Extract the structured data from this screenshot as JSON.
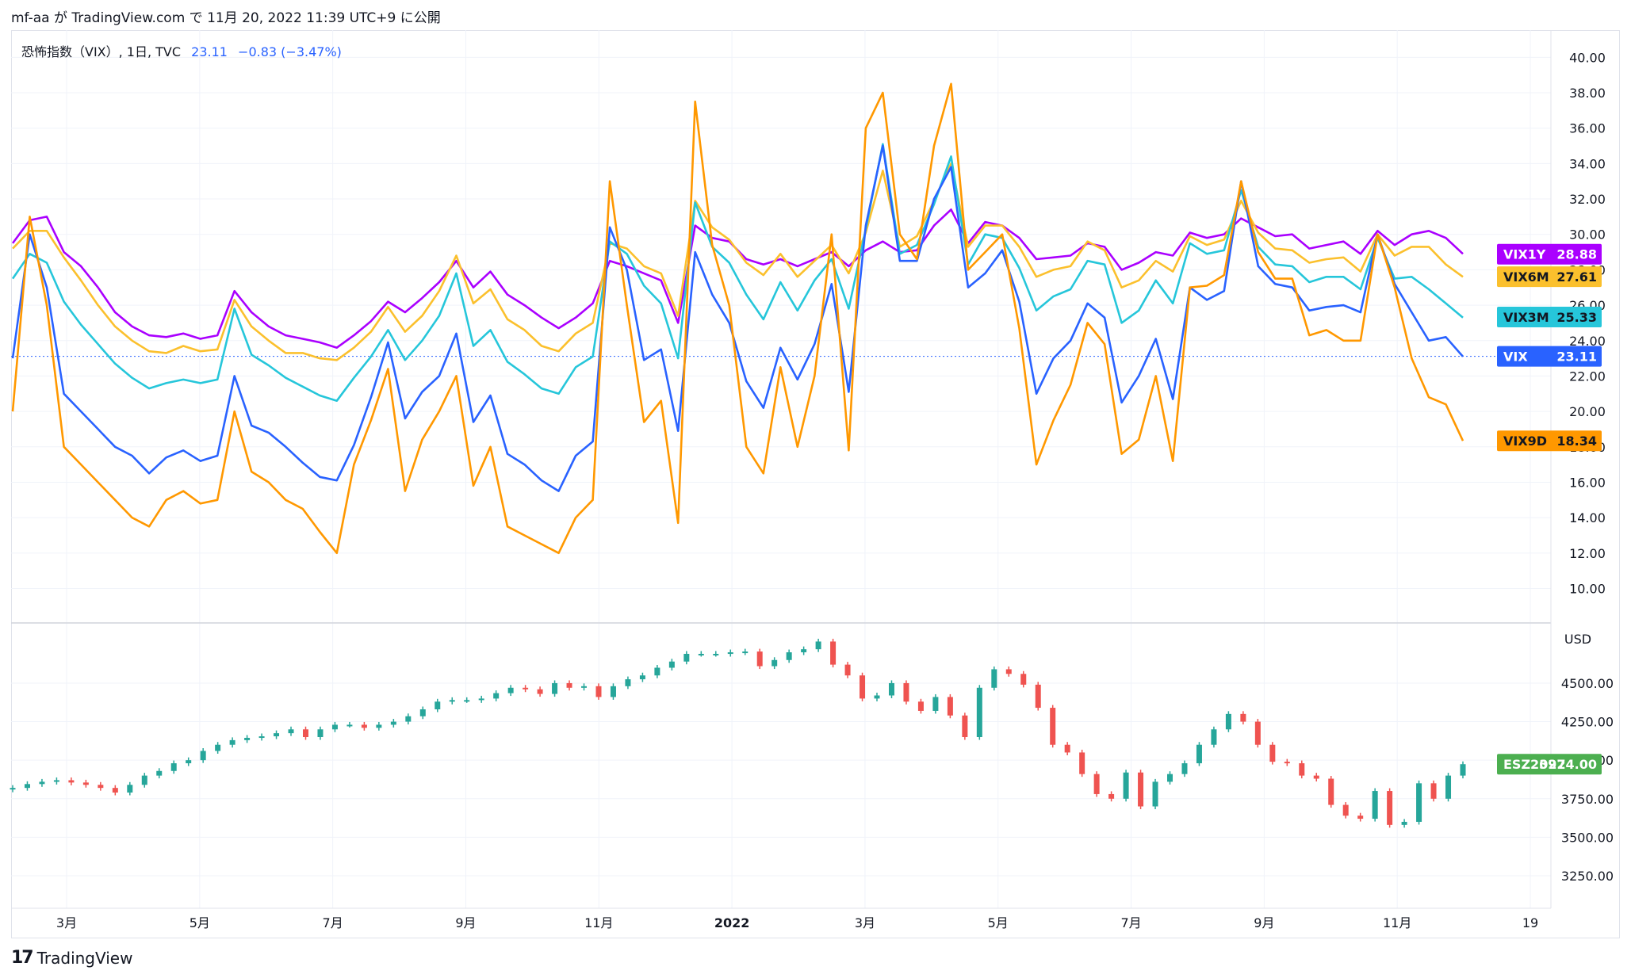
{
  "header": {
    "text": "mf-aa が TradingView.com で 11月 20, 2022 11:39 UTC+9 に公開"
  },
  "legend": {
    "title": "恐怖指数（VIX）, 1日, TVC",
    "value": "23.11",
    "change": "−0.83 (−3.47%)"
  },
  "footer": {
    "brand": "TradingView",
    "logo_icon": "tradingview-logo-icon"
  },
  "colors": {
    "VIX": "#2962ff",
    "VIX9D": "#ff9800",
    "VIX3M": "#26c6da",
    "VIX6M": "#fbc02d",
    "VIX1Y": "#aa00ff",
    "up": "#26a69a",
    "down": "#ef5350",
    "ES": "#4caf50"
  },
  "chart_data": [
    {
      "type": "line",
      "title": "",
      "x_tick_labels": [
        "3月",
        "5月",
        "7月",
        "9月",
        "11月",
        "2022",
        "3月",
        "5月",
        "7月",
        "9月",
        "11月",
        "19"
      ],
      "x_range": [
        "2021-01-25",
        "2022-11-20"
      ],
      "ylim": [
        8.5,
        41
      ],
      "y_ticks": [
        "10.00",
        "12.00",
        "14.00",
        "16.00",
        "18.00",
        "20.00",
        "22.00",
        "24.00",
        "26.00",
        "28.00",
        "30.00",
        "32.00",
        "34.00",
        "36.00",
        "38.00",
        "40.00"
      ],
      "grid": true,
      "series": [
        {
          "name": "VIX1Y",
          "last": "28.88",
          "values": [
            29.5,
            30.8,
            31.0,
            29.0,
            28.2,
            27.0,
            25.6,
            24.8,
            24.3,
            24.2,
            24.4,
            24.1,
            24.3,
            26.8,
            25.6,
            24.8,
            24.3,
            24.1,
            23.9,
            23.6,
            24.3,
            25.1,
            26.2,
            25.6,
            26.4,
            27.3,
            28.5,
            27.0,
            27.9,
            26.6,
            26.0,
            25.3,
            24.7,
            25.3,
            26.1,
            28.5,
            28.2,
            27.8,
            27.4,
            25.0,
            30.5,
            29.8,
            29.6,
            28.6,
            28.3,
            28.6,
            28.2,
            28.6,
            29.0,
            28.2,
            29.1,
            29.6,
            29.0,
            29.1,
            30.5,
            31.4,
            29.5,
            30.7,
            30.5,
            29.8,
            28.6,
            28.7,
            28.8,
            29.5,
            29.3,
            28.0,
            28.4,
            29.0,
            28.8,
            30.1,
            29.8,
            30.0,
            30.9,
            30.4,
            29.9,
            30.0,
            29.2,
            29.4,
            29.6,
            28.9,
            30.2,
            29.4,
            30.0,
            30.2,
            29.8,
            28.9
          ]
        },
        {
          "name": "VIX6M",
          "last": "27.61",
          "values": [
            29.2,
            30.2,
            30.2,
            28.7,
            27.4,
            26.0,
            24.8,
            24.0,
            23.4,
            23.3,
            23.7,
            23.4,
            23.5,
            26.3,
            24.8,
            24.0,
            23.3,
            23.3,
            23.0,
            22.9,
            23.6,
            24.5,
            25.9,
            24.5,
            25.4,
            26.8,
            28.8,
            26.1,
            26.9,
            25.2,
            24.6,
            23.7,
            23.4,
            24.4,
            25.0,
            29.5,
            29.2,
            28.2,
            27.8,
            25.4,
            31.9,
            30.4,
            29.7,
            28.4,
            27.7,
            28.9,
            27.6,
            28.5,
            29.4,
            27.8,
            30.1,
            33.6,
            29.3,
            29.9,
            31.9,
            34.0,
            29.3,
            30.5,
            30.5,
            29.3,
            27.6,
            28.0,
            28.2,
            29.6,
            29.1,
            27.0,
            27.4,
            28.5,
            27.9,
            29.9,
            29.4,
            29.7,
            31.9,
            30.1,
            29.2,
            29.1,
            28.4,
            28.6,
            28.7,
            27.9,
            30.0,
            28.8,
            29.3,
            29.3,
            28.3,
            27.6
          ]
        },
        {
          "name": "VIX3M",
          "last": "25.33",
          "values": [
            27.5,
            28.9,
            28.4,
            26.2,
            24.9,
            23.8,
            22.7,
            21.9,
            21.3,
            21.6,
            21.8,
            21.6,
            21.8,
            25.8,
            23.2,
            22.6,
            21.9,
            21.4,
            20.9,
            20.6,
            21.9,
            23.1,
            24.6,
            22.9,
            24.0,
            25.4,
            27.8,
            23.7,
            24.6,
            22.8,
            22.1,
            21.3,
            21.0,
            22.5,
            23.1,
            29.6,
            28.9,
            27.1,
            26.1,
            23.0,
            31.8,
            29.3,
            28.4,
            26.6,
            25.2,
            27.3,
            25.7,
            27.4,
            28.6,
            25.8,
            30.3,
            35.1,
            28.9,
            29.4,
            31.7,
            34.4,
            28.3,
            30.0,
            29.8,
            28.1,
            25.7,
            26.5,
            26.9,
            28.5,
            28.3,
            25.0,
            25.7,
            27.4,
            26.1,
            29.5,
            28.9,
            29.1,
            32.5,
            29.3,
            28.3,
            28.2,
            27.3,
            27.6,
            27.6,
            26.9,
            29.8,
            27.5,
            27.6,
            26.9,
            26.1,
            25.3
          ]
        },
        {
          "name": "VIX",
          "last": "23.11",
          "values": [
            23.0,
            30.0,
            27.0,
            21.0,
            20.0,
            19.0,
            18.0,
            17.5,
            16.5,
            17.4,
            17.8,
            17.2,
            17.5,
            22.0,
            19.2,
            18.8,
            18.0,
            17.1,
            16.3,
            16.1,
            18.1,
            20.8,
            23.9,
            19.6,
            21.1,
            22.0,
            24.4,
            19.4,
            20.9,
            17.6,
            17.0,
            16.1,
            15.5,
            17.5,
            18.3,
            30.4,
            28.0,
            22.9,
            23.5,
            18.9,
            29.0,
            26.6,
            25.0,
            21.7,
            20.2,
            23.6,
            21.8,
            23.8,
            27.2,
            21.1,
            30.5,
            35.0,
            28.5,
            28.5,
            32.0,
            33.8,
            27.0,
            27.8,
            29.1,
            26.2,
            21.0,
            23.0,
            24.0,
            26.1,
            25.3,
            20.5,
            22.0,
            24.1,
            20.7,
            27.0,
            26.3,
            26.8,
            33.0,
            28.2,
            27.2,
            27.0,
            25.7,
            25.9,
            26.0,
            25.6,
            30.0,
            27.2,
            25.6,
            24.0,
            24.2,
            23.1
          ]
        },
        {
          "name": "VIX9D",
          "last": "18.34",
          "values": [
            20.0,
            31.0,
            26.0,
            18.0,
            17.0,
            16.0,
            15.0,
            14.0,
            13.5,
            15.0,
            15.5,
            14.8,
            15.0,
            20.0,
            16.6,
            16.0,
            15.0,
            14.5,
            13.2,
            12.0,
            17.0,
            19.5,
            22.4,
            15.5,
            18.4,
            20.0,
            22.0,
            15.8,
            18.0,
            13.5,
            13.0,
            12.5,
            12.0,
            14.0,
            15.0,
            33.0,
            26.0,
            19.4,
            20.6,
            13.7,
            37.5,
            29.4,
            26.0,
            18.0,
            16.5,
            22.5,
            18.0,
            22.0,
            30.0,
            17.8,
            36.0,
            38.0,
            30.0,
            28.6,
            35.0,
            38.5,
            28.0,
            29.0,
            30.0,
            24.7,
            17.0,
            19.5,
            21.5,
            25.0,
            23.8,
            17.6,
            18.4,
            22.0,
            17.2,
            27.0,
            27.1,
            27.7,
            33.0,
            29.0,
            27.5,
            27.5,
            24.3,
            24.6,
            24.0,
            24.0,
            30.0,
            27.0,
            23.0,
            20.8,
            20.4,
            18.34
          ]
        }
      ]
    },
    {
      "type": "candlestick",
      "title": "",
      "series_name": "ESZ2022",
      "last": "3974.00",
      "unit": "USD",
      "ylim": [
        3070,
        4870
      ],
      "y_ticks": [
        "3250.00",
        "3500.00",
        "3750.00",
        "4000.00",
        "4250.00",
        "4500.00"
      ],
      "grid": true,
      "close": [
        3820,
        3845,
        3860,
        3870,
        3855,
        3840,
        3820,
        3790,
        3840,
        3900,
        3930,
        3980,
        4000,
        4060,
        4100,
        4130,
        4145,
        4155,
        4175,
        4200,
        4150,
        4200,
        4230,
        4230,
        4210,
        4230,
        4250,
        4285,
        4330,
        4380,
        4390,
        4390,
        4400,
        4435,
        4470,
        4460,
        4430,
        4500,
        4470,
        4480,
        4410,
        4480,
        4525,
        4550,
        4600,
        4640,
        4690,
        4690,
        4690,
        4700,
        4705,
        4610,
        4650,
        4700,
        4720,
        4770,
        4620,
        4550,
        4400,
        4420,
        4500,
        4380,
        4320,
        4410,
        4290,
        4150,
        4470,
        4590,
        4560,
        4490,
        4340,
        4100,
        4050,
        3910,
        3780,
        3750,
        3920,
        3700,
        3860,
        3910,
        3980,
        4100,
        4200,
        4300,
        4250,
        4100,
        3990,
        3980,
        3900,
        3880,
        3710,
        3640,
        3620,
        3800,
        3580,
        3600,
        3850,
        3750,
        3900,
        3974
      ]
    }
  ]
}
